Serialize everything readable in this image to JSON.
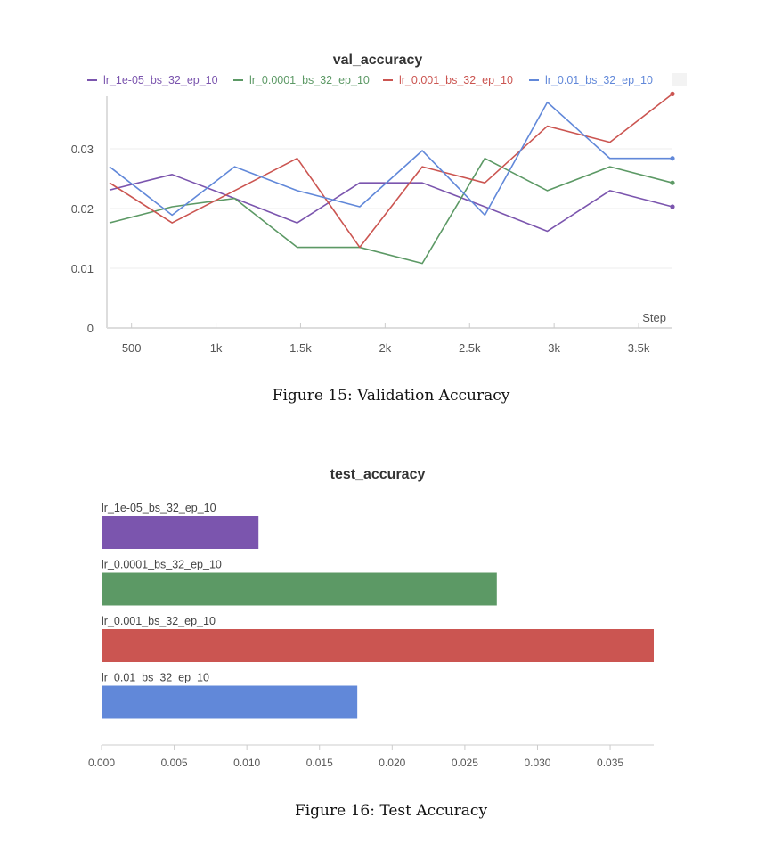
{
  "chart_data": [
    {
      "type": "line",
      "title": "val_accuracy",
      "xlabel": "Step",
      "ylabel": "",
      "xlim": [
        370,
        3700
      ],
      "ylim": [
        0,
        0.04
      ],
      "x_ticks": [
        500,
        1000,
        1500,
        2000,
        2500,
        3000,
        3500
      ],
      "x_tick_labels": [
        "500",
        "1k",
        "1.5k",
        "2k",
        "2.5k",
        "3k",
        "3.5k"
      ],
      "y_ticks": [
        0,
        0.01,
        0.02,
        0.03
      ],
      "y_tick_labels": [
        "0",
        "0.01",
        "0.02",
        "0.03"
      ],
      "grid": true,
      "legend": "top",
      "x": [
        370,
        740,
        1110,
        1480,
        1850,
        2220,
        2590,
        2960,
        3330,
        3700
      ],
      "series": [
        {
          "name": "lr_1e-05_bs_32_ep_10",
          "color": "#7b55ae",
          "values": [
            0.0231,
            0.0257,
            0.0217,
            0.0176,
            0.0243,
            0.0243,
            0.0203,
            0.0162,
            0.023,
            0.0203
          ]
        },
        {
          "name": "lr_0.0001_bs_32_ep_10",
          "color": "#5c9965",
          "values": [
            0.0176,
            0.0203,
            0.0217,
            0.0135,
            0.0135,
            0.0108,
            0.0284,
            0.023,
            0.027,
            0.0243
          ]
        },
        {
          "name": "lr_0.001_bs_32_ep_10",
          "color": "#cb5551",
          "values": [
            0.0243,
            0.0176,
            0.023,
            0.0284,
            0.0135,
            0.027,
            0.0243,
            0.0338,
            0.0311,
            0.0392
          ]
        },
        {
          "name": "lr_0.01_bs_32_ep_10",
          "color": "#6188d9",
          "values": [
            0.027,
            0.0189,
            0.027,
            0.023,
            0.0203,
            0.0297,
            0.0189,
            0.0378,
            0.0284,
            0.0284
          ]
        }
      ],
      "caption": "Figure 15: Validation Accuracy"
    },
    {
      "type": "bar",
      "orientation": "horizontal",
      "title": "test_accuracy",
      "xlim": [
        0,
        0.038
      ],
      "x_ticks": [
        0,
        0.005,
        0.01,
        0.015,
        0.02,
        0.025,
        0.03,
        0.035
      ],
      "x_tick_labels": [
        "0.000",
        "0.005",
        "0.010",
        "0.015",
        "0.020",
        "0.025",
        "0.030",
        "0.035"
      ],
      "categories": [
        "lr_1e-05_bs_32_ep_10",
        "lr_0.0001_bs_32_ep_10",
        "lr_0.001_bs_32_ep_10",
        "lr_0.01_bs_32_ep_10"
      ],
      "values": [
        0.0108,
        0.0272,
        0.038,
        0.0176
      ],
      "colors": [
        "#7b55ae",
        "#5c9965",
        "#cb5551",
        "#6188d9"
      ],
      "caption": "Figure 16: Test Accuracy"
    }
  ]
}
